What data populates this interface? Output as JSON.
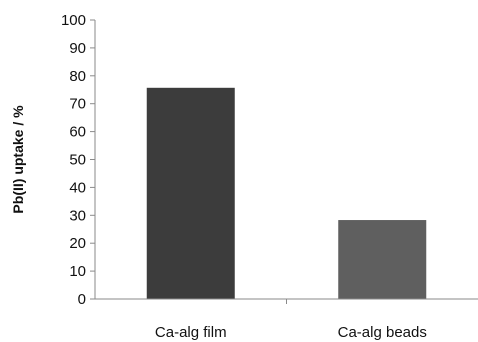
{
  "chart_data": {
    "type": "bar",
    "title": "",
    "xlabel": "",
    "ylabel": "Pb(II) uptake / %",
    "categories": [
      "Ca-alg film",
      "Ca-alg beads"
    ],
    "values": [
      75.7,
      28.3
    ],
    "ylim": [
      0,
      100
    ],
    "yticks": [
      "0",
      "10",
      "20",
      "30",
      "40",
      "50",
      "60",
      "70",
      "80",
      "90",
      "100"
    ],
    "grid": false,
    "legend": "none",
    "colors": [
      "#3c3c3c",
      "#5f5f5f"
    ]
  }
}
